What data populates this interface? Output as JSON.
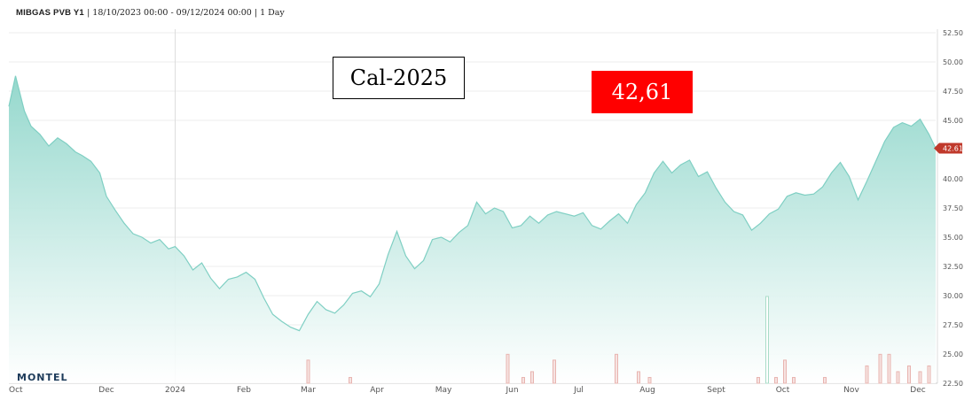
{
  "header": {
    "symbol": "MIBGAS PVB Y1",
    "info": "| 18/10/2023 00:00 - 09/12/2024 00:00 | 1 Day"
  },
  "annotations": {
    "product": "Cal-2025",
    "last_price": "42,61"
  },
  "brand": "MONTEL",
  "colors": {
    "area_line": "#7fcfc3",
    "area_fill": "#b9e6df",
    "last_price_tag": "#c0392b",
    "volume_bar": "#e8b4b0",
    "volume_bar_green": "#a9dcc8"
  },
  "chart_data": {
    "type": "area",
    "title": "MIBGAS PVB Y1",
    "xlabel": "",
    "ylabel": "",
    "ylim": [
      22.5,
      52.5
    ],
    "yticks": [
      "52.50",
      "50.00",
      "47.50",
      "45.00",
      "42.61",
      "40.00",
      "37.50",
      "35.00",
      "32.50",
      "30.00",
      "27.50",
      "25.00",
      "22.50"
    ],
    "xticks": [
      "Oct",
      "Dec",
      "2024",
      "Feb",
      "Mar",
      "Apr",
      "May",
      "Jun",
      "Jul",
      "Aug",
      "Sept",
      "Oct",
      "Nov",
      "Dec"
    ],
    "xtick_dates": [
      "2023-10-18",
      "2023-12-01",
      "2024-01-01",
      "2024-02-01",
      "2024-03-01",
      "2024-04-01",
      "2024-05-01",
      "2024-06-01",
      "2024-07-01",
      "2024-08-01",
      "2024-09-01",
      "2024-10-01",
      "2024-11-01",
      "2024-12-01"
    ],
    "last_value": 42.61,
    "series": [
      {
        "name": "",
        "x": [
          "2023-10-18",
          "2023-10-21",
          "2023-10-25",
          "2023-10-28",
          "2023-11-01",
          "2023-11-05",
          "2023-11-09",
          "2023-11-13",
          "2023-11-17",
          "2023-11-20",
          "2023-11-24",
          "2023-11-28",
          "2023-12-01",
          "2023-12-05",
          "2023-12-09",
          "2023-12-13",
          "2023-12-17",
          "2023-12-21",
          "2023-12-25",
          "2023-12-29",
          "2024-01-01",
          "2024-01-05",
          "2024-01-09",
          "2024-01-13",
          "2024-01-17",
          "2024-01-21",
          "2024-01-25",
          "2024-01-29",
          "2024-02-02",
          "2024-02-06",
          "2024-02-10",
          "2024-02-14",
          "2024-02-18",
          "2024-02-22",
          "2024-02-26",
          "2024-03-01",
          "2024-03-05",
          "2024-03-09",
          "2024-03-13",
          "2024-03-17",
          "2024-03-21",
          "2024-03-25",
          "2024-03-29",
          "2024-04-02",
          "2024-04-06",
          "2024-04-10",
          "2024-04-14",
          "2024-04-18",
          "2024-04-22",
          "2024-04-26",
          "2024-04-30",
          "2024-05-04",
          "2024-05-08",
          "2024-05-12",
          "2024-05-16",
          "2024-05-20",
          "2024-05-24",
          "2024-05-28",
          "2024-06-01",
          "2024-06-05",
          "2024-06-09",
          "2024-06-13",
          "2024-06-17",
          "2024-06-21",
          "2024-06-25",
          "2024-06-29",
          "2024-07-03",
          "2024-07-07",
          "2024-07-11",
          "2024-07-15",
          "2024-07-19",
          "2024-07-23",
          "2024-07-27",
          "2024-07-31",
          "2024-08-04",
          "2024-08-08",
          "2024-08-12",
          "2024-08-16",
          "2024-08-20",
          "2024-08-24",
          "2024-08-28",
          "2024-09-01",
          "2024-09-05",
          "2024-09-09",
          "2024-09-13",
          "2024-09-17",
          "2024-09-21",
          "2024-09-25",
          "2024-09-29",
          "2024-10-03",
          "2024-10-07",
          "2024-10-11",
          "2024-10-15",
          "2024-10-19",
          "2024-10-23",
          "2024-10-27",
          "2024-10-31",
          "2024-11-04",
          "2024-11-08",
          "2024-11-12",
          "2024-11-16",
          "2024-11-20",
          "2024-11-24",
          "2024-11-28",
          "2024-12-02",
          "2024-12-06",
          "2024-12-09"
        ],
        "values": [
          46.2,
          48.8,
          45.8,
          44.5,
          43.8,
          42.8,
          43.5,
          43.0,
          42.3,
          42.0,
          41.5,
          40.5,
          38.5,
          37.3,
          36.2,
          35.3,
          35.0,
          34.5,
          34.8,
          34.0,
          34.2,
          33.4,
          32.2,
          32.8,
          31.5,
          30.6,
          31.4,
          31.6,
          32.0,
          31.4,
          29.8,
          28.4,
          27.8,
          27.3,
          27.0,
          28.4,
          29.5,
          28.8,
          28.5,
          29.2,
          30.2,
          30.4,
          29.9,
          31.0,
          33.5,
          35.5,
          33.4,
          32.3,
          33.0,
          34.8,
          35.0,
          34.6,
          35.4,
          36.0,
          38.0,
          37.0,
          37.5,
          37.2,
          35.8,
          36.0,
          36.8,
          36.2,
          36.9,
          37.2,
          37.0,
          36.8,
          37.1,
          36.0,
          35.7,
          36.4,
          37.0,
          36.2,
          37.8,
          38.8,
          40.5,
          41.5,
          40.5,
          41.2,
          41.6,
          40.2,
          40.6,
          39.2,
          38.0,
          37.2,
          36.9,
          35.6,
          36.2,
          37.0,
          37.4,
          38.5,
          38.8,
          38.6,
          38.7,
          39.3,
          40.5,
          41.4,
          40.2,
          38.2,
          39.8,
          41.5,
          43.2,
          44.4,
          44.8,
          44.5,
          45.1,
          43.8,
          42.61
        ]
      }
    ],
    "volume": {
      "x": [
        "2024-03-01",
        "2024-03-20",
        "2024-05-30",
        "2024-06-06",
        "2024-06-10",
        "2024-06-20",
        "2024-07-18",
        "2024-07-28",
        "2024-08-02",
        "2024-09-20",
        "2024-09-24",
        "2024-09-28",
        "2024-10-02",
        "2024-10-06",
        "2024-10-20",
        "2024-11-08",
        "2024-11-14",
        "2024-11-18",
        "2024-11-22",
        "2024-11-27",
        "2024-12-02",
        "2024-12-06"
      ],
      "values": [
        4,
        1,
        5,
        1,
        2,
        4,
        5,
        2,
        1,
        1,
        15,
        1,
        4,
        1,
        1,
        3,
        5,
        5,
        2,
        3,
        2,
        3
      ]
    }
  }
}
